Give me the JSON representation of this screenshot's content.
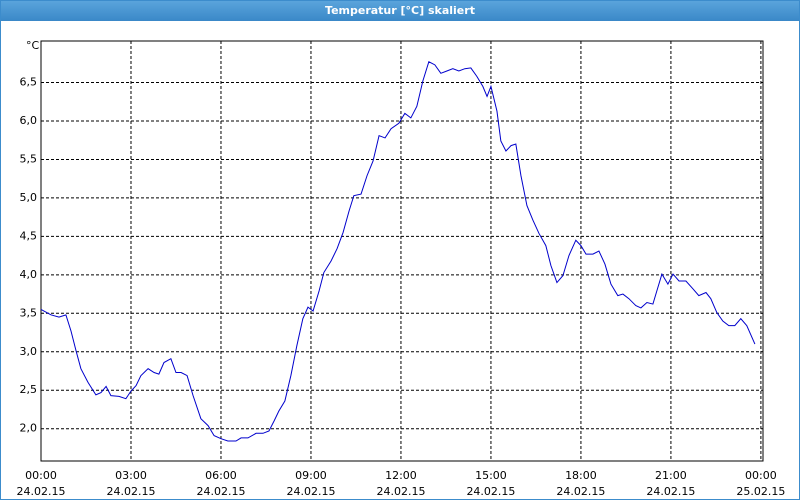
{
  "window_title": "Temperatur [°C] skaliert",
  "chart_data": {
    "type": "line",
    "y_unit": "°C",
    "x": [
      0,
      0.33,
      0.6,
      0.83,
      1,
      1.17,
      1.33,
      1.57,
      1.83,
      2,
      2.17,
      2.33,
      2.6,
      2.83,
      3,
      3.17,
      3.33,
      3.57,
      3.77,
      3.93,
      4.1,
      4.33,
      4.5,
      4.67,
      4.87,
      5.07,
      5.33,
      5.57,
      5.77,
      6,
      6.23,
      6.5,
      6.67,
      6.9,
      7.17,
      7.4,
      7.6,
      7.77,
      7.93,
      8.13,
      8.33,
      8.53,
      8.73,
      8.9,
      9.07,
      9.27,
      9.43,
      9.67,
      9.87,
      10.07,
      10.27,
      10.43,
      10.67,
      10.87,
      11.07,
      11.27,
      11.47,
      11.67,
      11.93,
      12.13,
      12.33,
      12.53,
      12.73,
      12.93,
      13.13,
      13.33,
      13.53,
      13.73,
      13.93,
      14.13,
      14.33,
      14.53,
      14.73,
      14.87,
      15,
      15.2,
      15.33,
      15.5,
      15.67,
      15.83,
      16,
      16.2,
      16.4,
      16.6,
      16.83,
      17,
      17.2,
      17.4,
      17.6,
      17.83,
      18,
      18.17,
      18.4,
      18.6,
      18.8,
      19,
      19.23,
      19.4,
      19.6,
      19.83,
      20,
      20.2,
      20.4,
      20.53,
      20.7,
      20.9,
      21.07,
      21.27,
      21.5,
      21.73,
      21.93,
      22.17,
      22.33,
      22.53,
      22.73,
      22.93,
      23.13,
      23.33,
      23.53,
      23.8
    ],
    "series": [
      {
        "name": "Temperatur",
        "color": "#0000cc",
        "values": [
          3.55,
          3.48,
          3.45,
          3.48,
          3.27,
          3.01,
          2.78,
          2.6,
          2.44,
          2.47,
          2.55,
          2.43,
          2.42,
          2.39,
          2.49,
          2.56,
          2.69,
          2.78,
          2.73,
          2.71,
          2.86,
          2.91,
          2.73,
          2.73,
          2.69,
          2.43,
          2.13,
          2.04,
          1.91,
          1.87,
          1.84,
          1.84,
          1.88,
          1.88,
          1.94,
          1.94,
          1.97,
          2.1,
          2.23,
          2.36,
          2.69,
          3.08,
          3.43,
          3.58,
          3.53,
          3.79,
          4.03,
          4.18,
          4.34,
          4.55,
          4.83,
          5.03,
          5.05,
          5.29,
          5.48,
          5.81,
          5.78,
          5.9,
          5.97,
          6.1,
          6.04,
          6.19,
          6.52,
          6.77,
          6.73,
          6.62,
          6.65,
          6.68,
          6.65,
          6.68,
          6.69,
          6.58,
          6.45,
          6.32,
          6.45,
          6.13,
          5.74,
          5.61,
          5.68,
          5.7,
          5.29,
          4.9,
          4.71,
          4.54,
          4.38,
          4.12,
          3.9,
          3.99,
          4.25,
          4.45,
          4.38,
          4.27,
          4.27,
          4.31,
          4.14,
          3.88,
          3.73,
          3.75,
          3.69,
          3.6,
          3.57,
          3.64,
          3.62,
          3.79,
          4.01,
          3.88,
          4.01,
          3.92,
          3.92,
          3.82,
          3.73,
          3.77,
          3.69,
          3.51,
          3.4,
          3.34,
          3.34,
          3.43,
          3.34,
          3.1
        ]
      }
    ],
    "xlim": [
      0,
      24.07
    ],
    "xticks": [
      {
        "value": 0,
        "label": "00:00",
        "date": "24.02.15"
      },
      {
        "value": 3,
        "label": "03:00",
        "date": "24.02.15"
      },
      {
        "value": 6,
        "label": "06:00",
        "date": "24.02.15"
      },
      {
        "value": 9,
        "label": "09:00",
        "date": "24.02.15"
      },
      {
        "value": 12,
        "label": "12:00",
        "date": "24.02.15"
      },
      {
        "value": 15,
        "label": "15:00",
        "date": "24.02.15"
      },
      {
        "value": 18,
        "label": "18:00",
        "date": "24.02.15"
      },
      {
        "value": 21,
        "label": "21:00",
        "date": "24.02.15"
      },
      {
        "value": 24,
        "label": "00:00",
        "date": "25.02.15"
      }
    ],
    "ylim": [
      1.58,
      7.04
    ],
    "yticks": [
      {
        "value": 2,
        "label": "2,0"
      },
      {
        "value": 2.5,
        "label": "2,5"
      },
      {
        "value": 3,
        "label": "3,0"
      },
      {
        "value": 3.5,
        "label": "3,5"
      },
      {
        "value": 4,
        "label": "4,0"
      },
      {
        "value": 4.5,
        "label": "4,5"
      },
      {
        "value": 5,
        "label": "5,0"
      },
      {
        "value": 5.5,
        "label": "5,5"
      },
      {
        "value": 6,
        "label": "6,0"
      },
      {
        "value": 6.5,
        "label": "6,5"
      }
    ],
    "grid": true
  }
}
